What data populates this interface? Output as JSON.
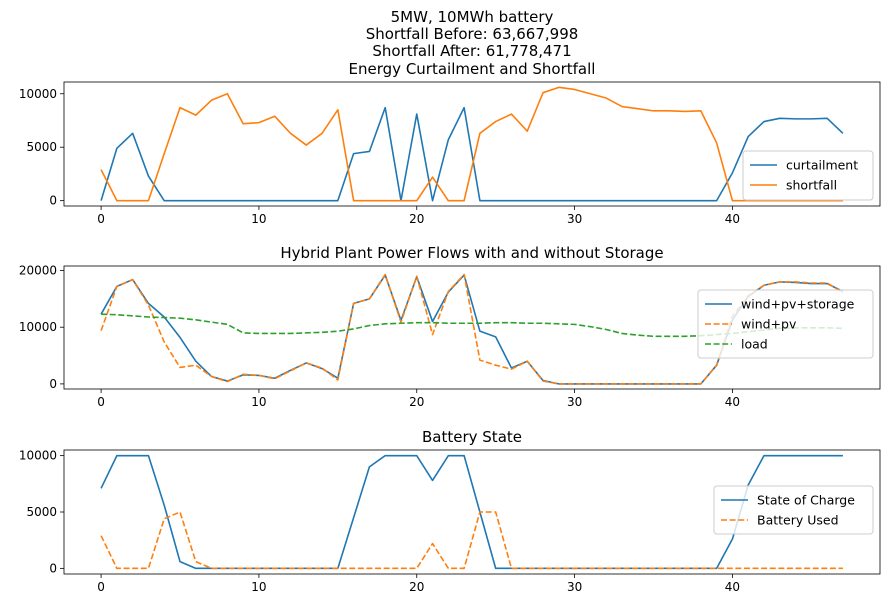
{
  "figure": {
    "title_lines": [
      "5MW, 10MWh battery",
      "Shortfall Before: 63,667,998",
      "Shortfall After: 61,778,471"
    ]
  },
  "chart_data": [
    {
      "type": "line",
      "title": "Energy Curtailment and Shortfall",
      "xlabel": "",
      "ylabel": "",
      "xlim": [
        -2.35,
        49.35
      ],
      "ylim": [
        -500,
        11100
      ],
      "xticks": [
        0,
        10,
        20,
        30,
        40
      ],
      "yticks": [
        0,
        5000,
        10000
      ],
      "legend_position": "lower right",
      "x": [
        0,
        1,
        2,
        3,
        4,
        5,
        6,
        7,
        8,
        9,
        10,
        11,
        12,
        13,
        14,
        15,
        16,
        17,
        18,
        19,
        20,
        21,
        22,
        23,
        24,
        25,
        26,
        27,
        28,
        29,
        30,
        31,
        32,
        33,
        34,
        35,
        36,
        37,
        38,
        39,
        40,
        41,
        42,
        43,
        44,
        45,
        46,
        47
      ],
      "series": [
        {
          "name": "curtailment",
          "color": "#1f77b4",
          "dash": "solid",
          "values": [
            0,
            4900,
            6300,
            2300,
            0,
            0,
            0,
            0,
            0,
            0,
            0,
            0,
            0,
            0,
            0,
            0,
            4400,
            4600,
            8700,
            0,
            8100,
            0,
            5700,
            8700,
            0,
            0,
            0,
            0,
            0,
            0,
            0,
            0,
            0,
            0,
            0,
            0,
            0,
            0,
            0,
            0,
            2600,
            6000,
            7400,
            7700,
            7650,
            7650,
            7700,
            6300
          ]
        },
        {
          "name": "shortfall",
          "color": "#ff7f0e",
          "dash": "solid",
          "values": [
            2900,
            0,
            0,
            0,
            4400,
            8700,
            8000,
            9400,
            10000,
            7200,
            7300,
            7900,
            6300,
            5200,
            6300,
            8500,
            0,
            0,
            0,
            0,
            0,
            2200,
            0,
            0,
            6300,
            7400,
            8100,
            6500,
            10100,
            10600,
            10400,
            10000,
            9600,
            8800,
            8600,
            8400,
            8400,
            8350,
            8400,
            5400,
            0,
            0,
            0,
            0,
            0,
            0,
            0,
            0
          ]
        }
      ]
    },
    {
      "type": "line",
      "title": "Hybrid Plant Power Flows with and without Storage",
      "xlabel": "",
      "ylabel": "",
      "xlim": [
        -2.35,
        49.35
      ],
      "ylim": [
        -900,
        20800
      ],
      "xticks": [
        0,
        10,
        20,
        30,
        40
      ],
      "yticks": [
        0,
        10000,
        20000
      ],
      "legend_position": "right",
      "x": [
        0,
        1,
        2,
        3,
        4,
        5,
        6,
        7,
        8,
        9,
        10,
        11,
        12,
        13,
        14,
        15,
        16,
        17,
        18,
        19,
        20,
        21,
        22,
        23,
        24,
        25,
        26,
        27,
        28,
        29,
        30,
        31,
        32,
        33,
        34,
        35,
        36,
        37,
        38,
        39,
        40,
        41,
        42,
        43,
        44,
        45,
        46,
        47
      ],
      "series": [
        {
          "name": "wind+pv+storage",
          "color": "#1f77b4",
          "dash": "solid",
          "values": [
            12300,
            17200,
            18400,
            14200,
            11800,
            8200,
            4000,
            1300,
            500,
            1600,
            1500,
            1000,
            2400,
            3700,
            2700,
            1000,
            14200,
            15000,
            19200,
            11200,
            18900,
            11000,
            16200,
            19200,
            9300,
            8300,
            2800,
            4000,
            600,
            0,
            0,
            0,
            0,
            0,
            0,
            0,
            0,
            0,
            0,
            3300,
            11300,
            15400,
            17400,
            18000,
            17900,
            17700,
            17700,
            16300
          ]
        },
        {
          "name": "wind+pv",
          "color": "#ff7f0e",
          "dash": "dashed",
          "values": [
            9400,
            17200,
            18400,
            13900,
            7400,
            2900,
            3300,
            1300,
            400,
            1700,
            1500,
            900,
            2300,
            3700,
            2800,
            700,
            14200,
            15000,
            19300,
            10900,
            19000,
            8700,
            16300,
            19300,
            4200,
            3300,
            2600,
            4000,
            500,
            0,
            0,
            0,
            0,
            0,
            0,
            0,
            0,
            0,
            0,
            3300,
            12000,
            15600,
            17400,
            18000,
            18000,
            17800,
            17800,
            16100
          ]
        },
        {
          "name": "load",
          "color": "#2ca02c",
          "dash": "dashed",
          "values": [
            12300,
            12200,
            12000,
            11800,
            11700,
            11600,
            11300,
            10900,
            10500,
            9000,
            8900,
            8900,
            8900,
            9000,
            9100,
            9300,
            9700,
            10300,
            10600,
            10700,
            10800,
            10800,
            10700,
            10700,
            10700,
            10800,
            10800,
            10700,
            10700,
            10600,
            10500,
            10100,
            9600,
            8900,
            8600,
            8400,
            8400,
            8400,
            8500,
            8700,
            8900,
            9200,
            9500,
            9800,
            9900,
            9900,
            9900,
            9800
          ]
        }
      ]
    },
    {
      "type": "line",
      "title": "Battery State",
      "xlabel": "",
      "ylabel": "",
      "xlim": [
        -2.35,
        49.35
      ],
      "ylim": [
        -500,
        10500
      ],
      "xticks": [
        0,
        10,
        20,
        30,
        40
      ],
      "yticks": [
        0,
        5000,
        10000
      ],
      "legend_position": "right",
      "x": [
        0,
        1,
        2,
        3,
        4,
        5,
        6,
        7,
        8,
        9,
        10,
        11,
        12,
        13,
        14,
        15,
        16,
        17,
        18,
        19,
        20,
        21,
        22,
        23,
        24,
        25,
        26,
        27,
        28,
        29,
        30,
        31,
        32,
        33,
        34,
        35,
        36,
        37,
        38,
        39,
        40,
        41,
        42,
        43,
        44,
        45,
        46,
        47
      ],
      "series": [
        {
          "name": "State of Charge",
          "color": "#1f77b4",
          "dash": "solid",
          "values": [
            7100,
            10000,
            10000,
            10000,
            5600,
            600,
            0,
            0,
            0,
            0,
            0,
            0,
            0,
            0,
            0,
            0,
            4500,
            9000,
            10000,
            10000,
            10000,
            7800,
            10000,
            10000,
            5000,
            0,
            0,
            0,
            0,
            0,
            0,
            0,
            0,
            0,
            0,
            0,
            0,
            0,
            0,
            0,
            2600,
            7400,
            10000,
            10000,
            10000,
            10000,
            10000,
            10000
          ]
        },
        {
          "name": "Battery Used",
          "color": "#ff7f0e",
          "dash": "dashed",
          "values": [
            2900,
            0,
            0,
            0,
            4400,
            5000,
            600,
            0,
            0,
            0,
            0,
            0,
            0,
            0,
            0,
            0,
            0,
            0,
            0,
            0,
            0,
            2200,
            0,
            0,
            5000,
            5000,
            0,
            0,
            0,
            0,
            0,
            0,
            0,
            0,
            0,
            0,
            0,
            0,
            0,
            0,
            0,
            0,
            0,
            0,
            0,
            0,
            0,
            0
          ]
        }
      ]
    }
  ]
}
